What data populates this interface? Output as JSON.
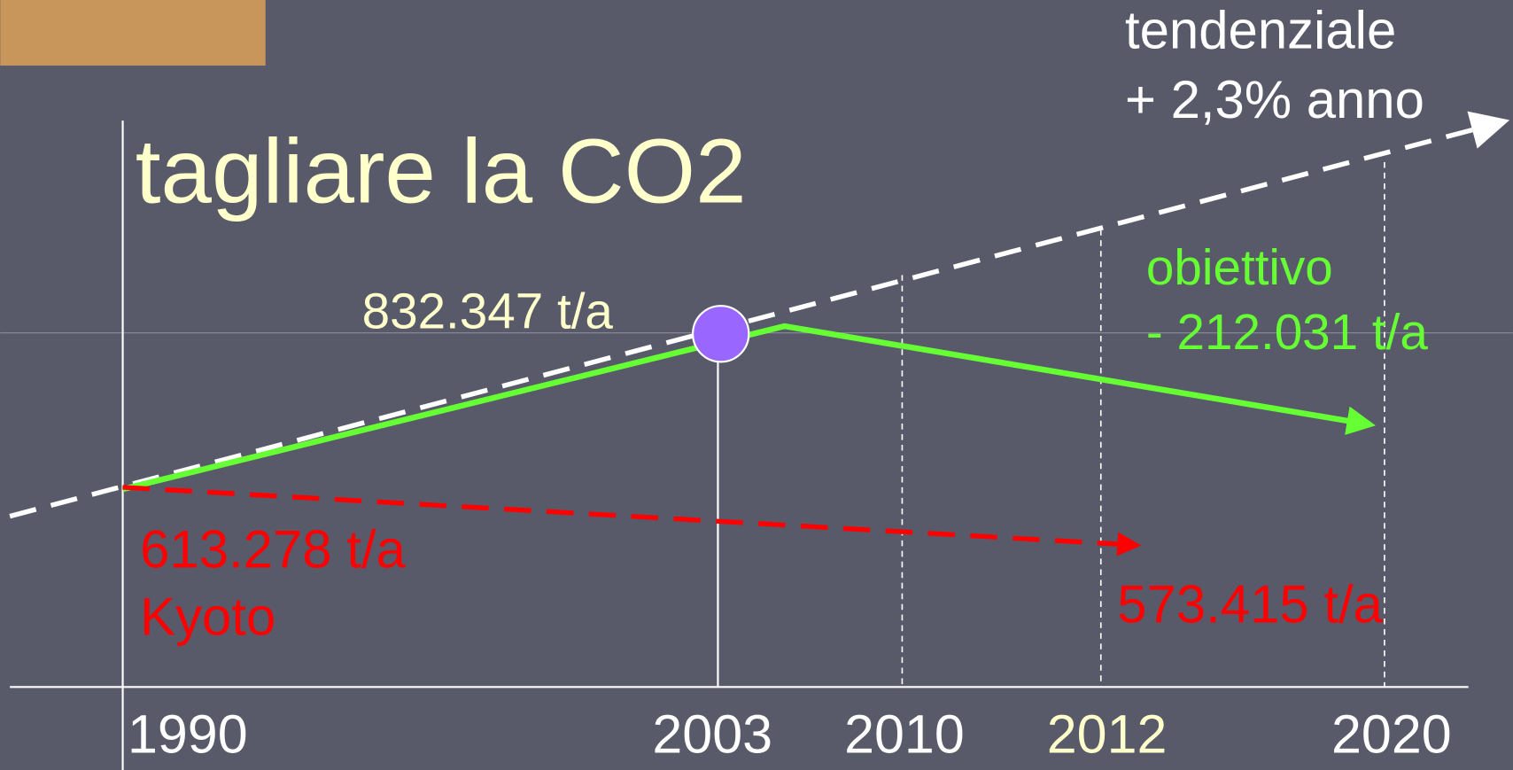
{
  "title": "tagliare la CO2",
  "trend": [
    "tendenziale",
    "+ 2,3% anno"
  ],
  "objective": [
    "obiettivo",
    "- 212.031 t/a"
  ],
  "peak": "832.347 t/a",
  "baseline": [
    "613.278 t/a",
    "Kyoto"
  ],
  "target": "573.415 t/a",
  "years": [
    "1990",
    "2003",
    "2010",
    "2012",
    "2020"
  ]
}
